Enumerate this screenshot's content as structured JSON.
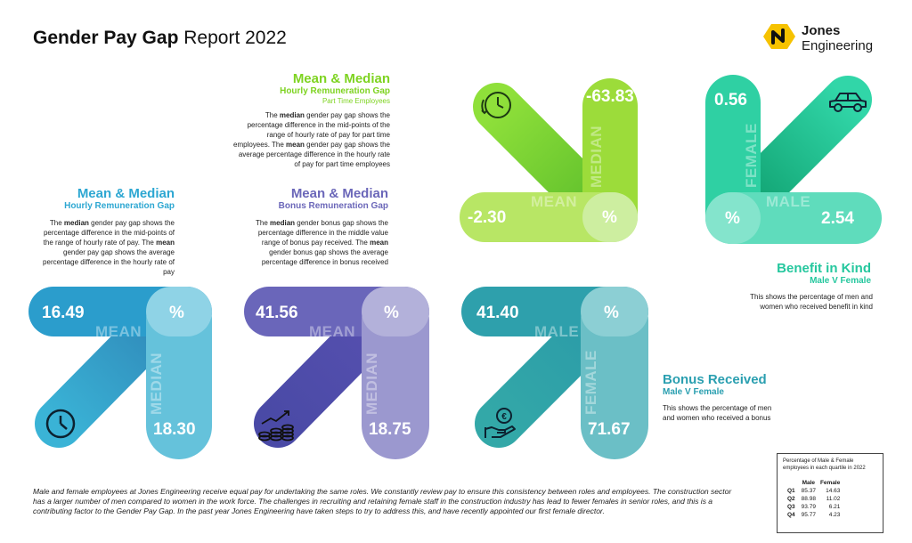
{
  "header": {
    "title_bold": "Gender Pay Gap",
    "title_rest": "Report 2022",
    "logo_line1": "Jones",
    "logo_line2": "Engineering"
  },
  "colors": {
    "green": "#8bd62e",
    "lime": "#b2e55a",
    "teal": "#25c79e",
    "blue": "#35a9cc",
    "purple": "#6560b5",
    "turquoise": "#32a3b3"
  },
  "part_time": {
    "heading": "Mean & Median",
    "subheading": "Hourly Remuneration Gap",
    "note": "Part Time Employees",
    "text_pre": "The ",
    "text_bold1": "median",
    "text_mid": " gender pay gap shows the percentage difference in the mid-points of the range of hourly rate of pay for part time employees. The ",
    "text_bold2": "mean",
    "text_post": " gender pay gap shows the average percentage difference in the hourly rate of pay for part time employees",
    "mean_value": "-2.30",
    "median_value": "-63.83",
    "mean_word": "MEAN",
    "median_word": "MEDIAN",
    "pct": "%",
    "icon": "stopwatch-icon"
  },
  "benefit": {
    "female_value": "0.56",
    "male_value": "2.54",
    "female_word": "FEMALE",
    "male_word": "MALE",
    "pct": "%",
    "heading": "Benefit in Kind",
    "subheading": "Male V Female",
    "text": "This shows the percentage of men and women who received benefit in kind",
    "icon": "car-icon"
  },
  "hourly": {
    "heading": "Mean & Median",
    "subheading": "Hourly Remuneration Gap",
    "text_pre": "The ",
    "text_bold1": "median",
    "text_mid": " gender pay gap shows the percentage difference in the mid-points of the range of hourly rate of pay. The ",
    "text_bold2": "mean",
    "text_post": " gender pay gap shows the average percentage difference in the hourly rate of pay",
    "mean_value": "16.49",
    "median_value": "18.30",
    "mean_word": "MEAN",
    "median_word": "MEDIAN",
    "pct": "%",
    "icon": "clock-icon"
  },
  "bonus_gap": {
    "heading": "Mean & Median",
    "subheading": "Bonus Remuneration Gap",
    "text_pre": "The ",
    "text_bold1": "median",
    "text_mid": " gender bonus gap shows the percentage difference in the middle value range of bonus pay received. The ",
    "text_bold2": "mean",
    "text_post": " gender bonus gap shows the average percentage difference in bonus received",
    "mean_value": "41.56",
    "median_value": "18.75",
    "mean_word": "MEAN",
    "median_word": "MEDIAN",
    "pct": "%",
    "icon": "coins-growth-icon"
  },
  "bonus_received": {
    "male_value": "41.40",
    "female_value": "71.67",
    "male_word": "MALE",
    "female_word": "FEMALE",
    "pct": "%",
    "heading": "Bonus Received",
    "subheading": "Male V Female",
    "text": "This shows the percentage of men and women who received a bonus",
    "icon": "hand-coin-icon"
  },
  "footer": "Male and female employees at Jones Engineering receive equal pay for undertaking the same roles. We constantly review pay to ensure this consistency between roles and employees. The construction sector has a larger number of men compared to women in the work force. The challenges in recruiting and retaining female staff in the construction industry has lead to fewer females in senior roles, and this is a contributing factor to the Gender Pay Gap. In the past year Jones Engineering have taken steps to try to address this, and have recently appointed our first female director.",
  "quartile_table": {
    "caption": "Percentage of Male & Female employees in each quartile in 2022",
    "col_male": "Male",
    "col_female": "Female",
    "rows": [
      {
        "q": "Q1",
        "male": "85.37",
        "female": "14.63"
      },
      {
        "q": "Q2",
        "male": "88.98",
        "female": "11.02"
      },
      {
        "q": "Q3",
        "male": "93.79",
        "female": "6.21"
      },
      {
        "q": "Q4",
        "male": "95.77",
        "female": "4.23"
      }
    ]
  }
}
